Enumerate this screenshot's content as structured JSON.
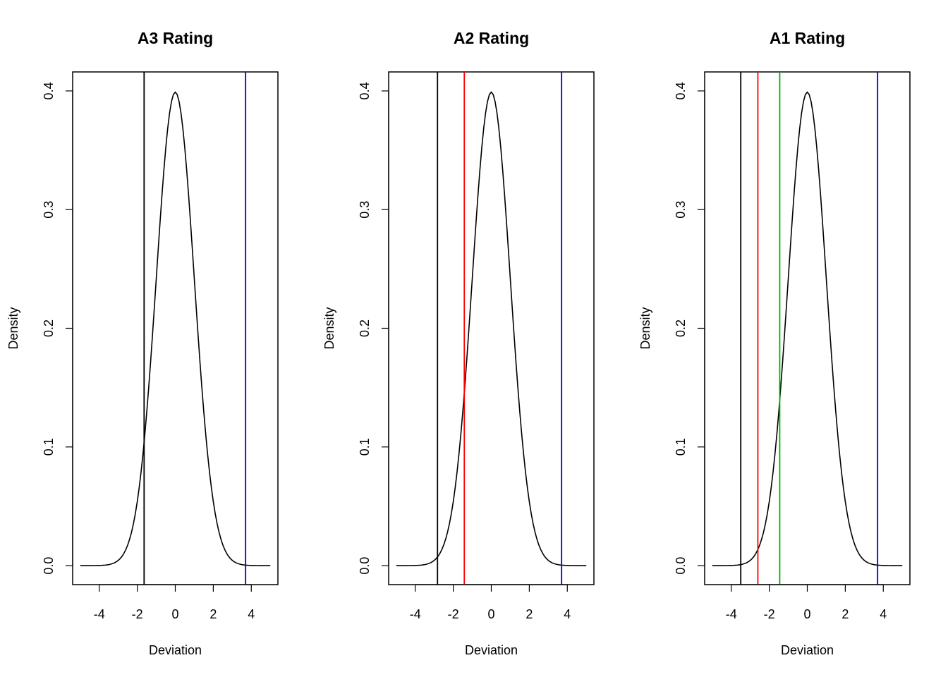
{
  "chart_data": [
    {
      "type": "line",
      "title": "A3 Rating",
      "xlabel": "Deviation",
      "ylabel": "Density",
      "xlim": [
        -5.4,
        5.4
      ],
      "ylim": [
        -0.016,
        0.416
      ],
      "xticks": [
        -4,
        -2,
        0,
        2,
        4
      ],
      "xtick_labels": [
        "-4",
        "-2",
        "0",
        "2",
        "4"
      ],
      "yticks": [
        0.0,
        0.1,
        0.2,
        0.3,
        0.4
      ],
      "ytick_labels": [
        "0.0",
        "0.1",
        "0.2",
        "0.3",
        "0.4"
      ],
      "series": [
        {
          "name": "standard normal density",
          "x_range": [
            -5,
            5
          ],
          "color": "#000000"
        }
      ],
      "vlines": [
        {
          "x": -1.64,
          "color": "#000000"
        },
        {
          "x": 3.7,
          "color": "#0000CD"
        }
      ]
    },
    {
      "type": "line",
      "title": "A2 Rating",
      "xlabel": "Deviation",
      "ylabel": "Density",
      "xlim": [
        -5.4,
        5.4
      ],
      "ylim": [
        -0.016,
        0.416
      ],
      "xticks": [
        -4,
        -2,
        0,
        2,
        4
      ],
      "xtick_labels": [
        "-4",
        "-2",
        "0",
        "2",
        "4"
      ],
      "yticks": [
        0.0,
        0.1,
        0.2,
        0.3,
        0.4
      ],
      "ytick_labels": [
        "0.0",
        "0.1",
        "0.2",
        "0.3",
        "0.4"
      ],
      "series": [
        {
          "name": "standard normal density",
          "x_range": [
            -5,
            5
          ],
          "color": "#000000"
        }
      ],
      "vlines": [
        {
          "x": -2.83,
          "color": "#000000"
        },
        {
          "x": -1.42,
          "color": "#FF0000"
        },
        {
          "x": 3.7,
          "color": "#0000CD"
        }
      ]
    },
    {
      "type": "line",
      "title": "A1 Rating",
      "xlabel": "Deviation",
      "ylabel": "Density",
      "xlim": [
        -5.4,
        5.4
      ],
      "ylim": [
        -0.016,
        0.416
      ],
      "xticks": [
        -4,
        -2,
        0,
        2,
        4
      ],
      "xtick_labels": [
        "-4",
        "-2",
        "0",
        "2",
        "4"
      ],
      "yticks": [
        0.0,
        0.1,
        0.2,
        0.3,
        0.4
      ],
      "ytick_labels": [
        "0.0",
        "0.1",
        "0.2",
        "0.3",
        "0.4"
      ],
      "series": [
        {
          "name": "standard normal density",
          "x_range": [
            -5,
            5
          ],
          "color": "#000000"
        }
      ],
      "vlines": [
        {
          "x": -3.5,
          "color": "#000000"
        },
        {
          "x": -2.6,
          "color": "#FF0000"
        },
        {
          "x": -1.45,
          "color": "#00B000"
        },
        {
          "x": 3.7,
          "color": "#0000CD"
        }
      ]
    }
  ]
}
